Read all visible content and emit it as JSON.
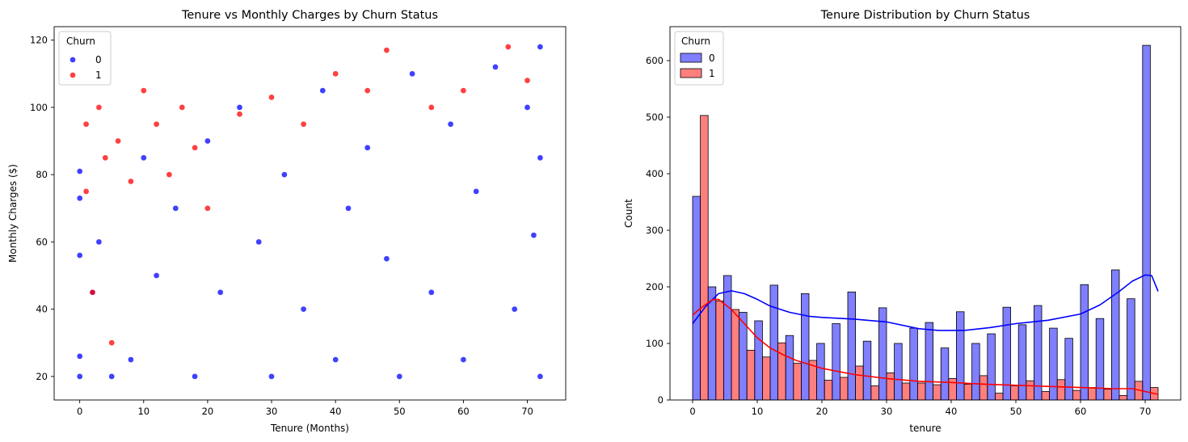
{
  "chart_data": [
    {
      "type": "scatter",
      "title": "Tenure vs Monthly Charges by Churn Status",
      "xlabel": "Tenure (Months)",
      "ylabel": "Monthly Charges ($)",
      "xlim": [
        -4,
        76
      ],
      "ylim": [
        13,
        124
      ],
      "x_ticks": [
        0,
        10,
        20,
        30,
        40,
        50,
        60,
        70
      ],
      "y_ticks": [
        20,
        40,
        60,
        80,
        100,
        120
      ],
      "grid": false,
      "legend": {
        "title": "Churn",
        "placement": "top-left",
        "entries": [
          "0",
          "1"
        ]
      },
      "colors": {
        "0": "#0000ff",
        "1": "#ff0000"
      },
      "series": [
        {
          "name": "0",
          "color": "#0000ff",
          "summary": "dense across all tenures 0-72; bands near 20 and 25; spread 25-118",
          "points": [
            [
              0,
              20
            ],
            [
              0,
              26
            ],
            [
              0,
              56
            ],
            [
              0,
              81
            ],
            [
              0,
              73
            ],
            [
              2,
              45
            ],
            [
              3,
              60
            ],
            [
              5,
              20
            ],
            [
              8,
              25
            ],
            [
              10,
              85
            ],
            [
              12,
              50
            ],
            [
              15,
              70
            ],
            [
              18,
              20
            ],
            [
              20,
              90
            ],
            [
              22,
              45
            ],
            [
              25,
              100
            ],
            [
              28,
              60
            ],
            [
              30,
              20
            ],
            [
              32,
              80
            ],
            [
              35,
              40
            ],
            [
              38,
              105
            ],
            [
              40,
              25
            ],
            [
              42,
              70
            ],
            [
              45,
              88
            ],
            [
              48,
              55
            ],
            [
              50,
              20
            ],
            [
              52,
              110
            ],
            [
              55,
              45
            ],
            [
              58,
              95
            ],
            [
              60,
              25
            ],
            [
              62,
              75
            ],
            [
              65,
              112
            ],
            [
              68,
              40
            ],
            [
              70,
              100
            ],
            [
              72,
              20
            ],
            [
              72,
              118
            ],
            [
              71,
              62
            ],
            [
              72,
              85
            ]
          ]
        },
        {
          "name": "1",
          "color": "#ff0000",
          "summary": "concentrated at low tenure (0-20) with charges 70-105; sparse at higher tenure",
          "points": [
            [
              1,
              75
            ],
            [
              1,
              95
            ],
            [
              2,
              45
            ],
            [
              3,
              100
            ],
            [
              4,
              85
            ],
            [
              5,
              30
            ],
            [
              6,
              90
            ],
            [
              8,
              78
            ],
            [
              10,
              105
            ],
            [
              12,
              95
            ],
            [
              14,
              80
            ],
            [
              16,
              100
            ],
            [
              18,
              88
            ],
            [
              20,
              70
            ],
            [
              25,
              98
            ],
            [
              30,
              103
            ],
            [
              35,
              95
            ],
            [
              40,
              110
            ],
            [
              45,
              105
            ],
            [
              48,
              117
            ],
            [
              55,
              100
            ],
            [
              60,
              105
            ],
            [
              67,
              118
            ],
            [
              70,
              108
            ]
          ]
        }
      ]
    },
    {
      "type": "bar",
      "subtype": "histogram-with-kde",
      "title": "Tenure Distribution by Churn Status",
      "xlabel": "tenure",
      "ylabel": "Count",
      "xlim": [
        -3.5,
        75.5
      ],
      "ylim": [
        0,
        660
      ],
      "x_ticks": [
        0,
        10,
        20,
        30,
        40,
        50,
        60,
        70
      ],
      "y_ticks": [
        0,
        100,
        200,
        300,
        400,
        500,
        600
      ],
      "grid": false,
      "legend": {
        "title": "Churn",
        "placement": "top-left",
        "entries": [
          "0",
          "1"
        ]
      },
      "colors": {
        "0": "#0000ff",
        "1": "#ff0000"
      },
      "bin_edges": [
        0,
        2.4,
        4.8,
        7.2,
        9.6,
        12,
        14.4,
        16.8,
        19.2,
        21.6,
        24,
        26.4,
        28.8,
        31.2,
        33.6,
        36,
        38.4,
        40.8,
        43.2,
        45.6,
        48,
        50.4,
        52.8,
        55.2,
        57.6,
        60,
        62.4,
        64.8,
        67.2,
        69.6,
        72
      ],
      "series": [
        {
          "name": "0",
          "color": "#0000ff",
          "values": [
            360,
            200,
            220,
            155,
            140,
            203,
            114,
            188,
            100,
            135,
            191,
            104,
            163,
            100,
            127,
            137,
            92,
            156,
            100,
            117,
            164,
            133,
            167,
            127,
            109,
            204,
            144,
            230,
            179,
            627
          ],
          "kde": [
            [
              0,
              135
            ],
            [
              2,
              165
            ],
            [
              4,
              188
            ],
            [
              6,
              193
            ],
            [
              8,
              188
            ],
            [
              10,
              178
            ],
            [
              12,
              166
            ],
            [
              15,
              155
            ],
            [
              18,
              148
            ],
            [
              20,
              146
            ],
            [
              25,
              143
            ],
            [
              30,
              138
            ],
            [
              35,
              126
            ],
            [
              38,
              123
            ],
            [
              42,
              123
            ],
            [
              46,
              128
            ],
            [
              50,
              135
            ],
            [
              55,
              141
            ],
            [
              60,
              152
            ],
            [
              63,
              168
            ],
            [
              66,
              192
            ],
            [
              68,
              210
            ],
            [
              70,
              221
            ],
            [
              71,
              220
            ],
            [
              72,
              192
            ]
          ]
        },
        {
          "name": "1",
          "color": "#ff0000",
          "values": [
            503,
            175,
            160,
            88,
            76,
            101,
            65,
            70,
            35,
            40,
            60,
            25,
            48,
            30,
            30,
            27,
            38,
            28,
            43,
            12,
            25,
            34,
            15,
            36,
            17,
            22,
            19,
            8,
            33,
            22
          ],
          "kde": [
            [
              0,
              150
            ],
            [
              1,
              160
            ],
            [
              3,
              177
            ],
            [
              4,
              178
            ],
            [
              6,
              160
            ],
            [
              8,
              135
            ],
            [
              10,
              110
            ],
            [
              12,
              92
            ],
            [
              14,
              80
            ],
            [
              16,
              70
            ],
            [
              18,
              63
            ],
            [
              20,
              56
            ],
            [
              25,
              45
            ],
            [
              30,
              38
            ],
            [
              35,
              33
            ],
            [
              40,
              31
            ],
            [
              45,
              28
            ],
            [
              50,
              26
            ],
            [
              55,
              24
            ],
            [
              60,
              22
            ],
            [
              65,
              20
            ],
            [
              68,
              20
            ],
            [
              70,
              15
            ],
            [
              72,
              10
            ]
          ]
        }
      ]
    }
  ]
}
